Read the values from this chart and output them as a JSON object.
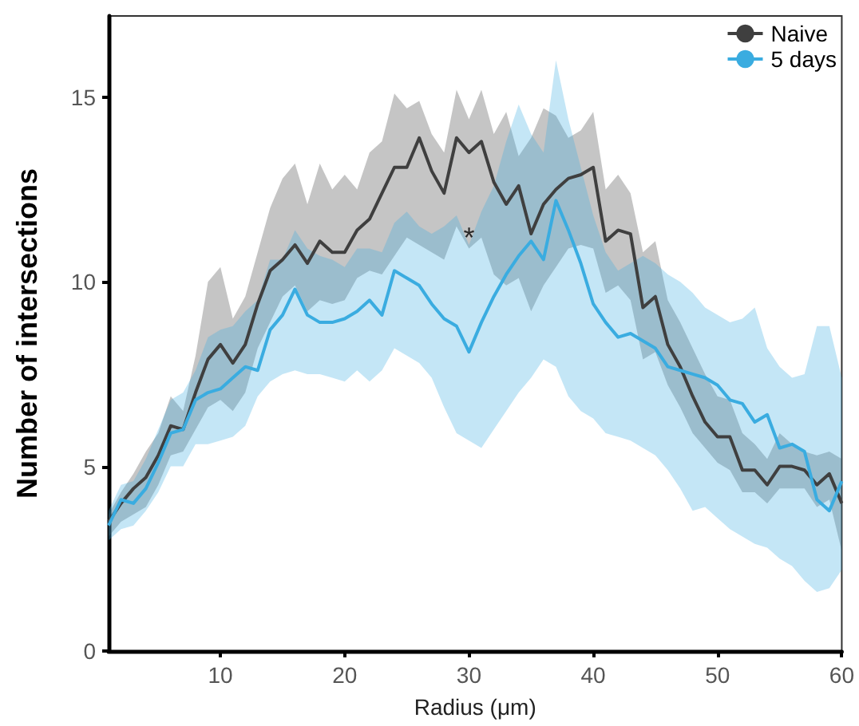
{
  "chart_data": {
    "type": "line",
    "xlabel": "Radius (μm)",
    "ylabel": "Number of intersections",
    "x": [
      1,
      2,
      3,
      4,
      5,
      6,
      7,
      8,
      9,
      10,
      11,
      12,
      13,
      14,
      15,
      16,
      17,
      18,
      19,
      20,
      21,
      22,
      23,
      24,
      25,
      26,
      27,
      28,
      29,
      30,
      31,
      32,
      33,
      34,
      35,
      36,
      37,
      38,
      39,
      40,
      41,
      42,
      43,
      44,
      45,
      46,
      47,
      48,
      49,
      50,
      51,
      52,
      53,
      54,
      55,
      56,
      57,
      58,
      59,
      60
    ],
    "series": [
      {
        "name": "Naive",
        "color": "#3f3f3f",
        "values": [
          3.5,
          4.0,
          4.4,
          4.7,
          5.3,
          6.1,
          6.0,
          7.0,
          7.9,
          8.3,
          7.8,
          8.3,
          9.4,
          10.3,
          10.6,
          11.0,
          10.5,
          11.1,
          10.8,
          10.8,
          11.4,
          11.7,
          12.4,
          13.1,
          13.1,
          13.9,
          13.0,
          12.4,
          13.9,
          13.5,
          13.8,
          12.7,
          12.1,
          12.6,
          11.3,
          12.1,
          12.5,
          12.8,
          12.9,
          13.1,
          11.1,
          11.4,
          11.3,
          9.3,
          9.6,
          8.3,
          7.7,
          6.9,
          6.2,
          5.8,
          5.8,
          4.9,
          4.9,
          4.5,
          5.0,
          5.0,
          4.9,
          4.5,
          4.8,
          4.0
        ],
        "lower": [
          3.1,
          3.5,
          3.7,
          3.9,
          4.5,
          5.3,
          5.4,
          6.0,
          6.6,
          6.8,
          6.5,
          7.0,
          8.2,
          8.9,
          9.6,
          9.9,
          9.2,
          9.5,
          9.4,
          9.5,
          10.1,
          10.3,
          10.2,
          10.7,
          11.2,
          11.0,
          10.8,
          10.6,
          11.5,
          10.9,
          11.2,
          10.2,
          9.9,
          10.1,
          9.2,
          9.9,
          10.4,
          10.9,
          11.0,
          10.9,
          9.7,
          9.9,
          9.5,
          7.9,
          8.1,
          7.2,
          6.6,
          5.9,
          5.5,
          5.1,
          4.9,
          4.3,
          4.3,
          4.0,
          4.4,
          4.4,
          4.4,
          3.9,
          4.1,
          2.7
        ],
        "upper": [
          3.7,
          4.3,
          4.8,
          5.4,
          5.9,
          6.9,
          6.5,
          8.0,
          10.0,
          10.4,
          9.0,
          9.6,
          10.8,
          12.0,
          12.8,
          13.2,
          12.1,
          13.2,
          12.5,
          12.9,
          12.5,
          13.5,
          13.8,
          15.1,
          14.7,
          14.9,
          14.0,
          13.5,
          15.2,
          14.4,
          15.2,
          14.0,
          14.6,
          13.4,
          13.9,
          14.7,
          14.5,
          13.9,
          14.1,
          14.6,
          12.5,
          12.9,
          12.4,
          10.8,
          11.1,
          9.5,
          8.9,
          8.2,
          7.5,
          6.9,
          6.8,
          5.9,
          5.6,
          5.2,
          5.9,
          5.6,
          5.4,
          5.3,
          5.4,
          5.2
        ]
      },
      {
        "name": "5 days",
        "color": "#3aace0",
        "values": [
          3.4,
          4.1,
          4.0,
          4.4,
          5.1,
          5.9,
          6.0,
          6.8,
          7.0,
          7.1,
          7.4,
          7.7,
          7.6,
          8.7,
          9.1,
          9.8,
          9.1,
          8.9,
          8.9,
          9.0,
          9.2,
          9.5,
          9.1,
          10.3,
          10.1,
          9.9,
          9.4,
          9.0,
          8.8,
          8.1,
          8.9,
          9.6,
          10.2,
          10.7,
          11.1,
          10.6,
          12.2,
          11.4,
          10.5,
          9.4,
          8.9,
          8.5,
          8.6,
          8.4,
          8.2,
          7.7,
          7.6,
          7.5,
          7.4,
          7.2,
          6.8,
          6.7,
          6.2,
          6.4,
          5.5,
          5.6,
          5.4,
          4.1,
          3.8,
          4.6
        ],
        "lower": [
          3.0,
          3.3,
          3.4,
          3.8,
          4.3,
          5.0,
          5.0,
          5.6,
          5.6,
          5.7,
          5.8,
          6.1,
          6.9,
          7.3,
          7.5,
          7.6,
          7.5,
          7.5,
          7.4,
          7.3,
          7.6,
          7.3,
          7.6,
          8.2,
          8.0,
          7.8,
          7.4,
          6.6,
          5.9,
          5.7,
          5.5,
          6.0,
          6.5,
          7.0,
          7.4,
          7.9,
          7.7,
          6.9,
          6.5,
          6.3,
          5.9,
          5.8,
          5.7,
          5.5,
          5.3,
          4.9,
          4.4,
          3.8,
          3.9,
          3.6,
          3.3,
          3.1,
          2.9,
          2.8,
          2.5,
          2.3,
          1.9,
          1.6,
          1.7,
          2.2
        ],
        "upper": [
          3.8,
          4.5,
          4.6,
          5.2,
          6.0,
          6.8,
          7.0,
          7.6,
          8.5,
          8.7,
          8.8,
          9.2,
          9.5,
          10.6,
          10.6,
          11.4,
          10.9,
          10.7,
          10.6,
          10.4,
          10.9,
          10.9,
          10.8,
          11.6,
          11.9,
          11.5,
          11.3,
          11.5,
          11.8,
          11.0,
          11.9,
          12.6,
          13.8,
          14.8,
          14.0,
          13.5,
          16.0,
          14.4,
          13.1,
          11.8,
          10.8,
          10.3,
          10.5,
          10.7,
          10.5,
          10.2,
          10.0,
          9.7,
          9.3,
          9.1,
          8.9,
          9.0,
          9.3,
          8.2,
          7.7,
          7.4,
          7.5,
          8.8,
          8.8,
          7.4
        ]
      }
    ],
    "annotations": [
      {
        "text": "*",
        "x": 30,
        "y": 11.2
      }
    ],
    "xlim": [
      1,
      60
    ],
    "xticks": [
      10,
      20,
      30,
      40,
      50,
      60
    ],
    "ylim": [
      0,
      17.2
    ],
    "yticks": [
      0,
      5,
      10,
      15
    ],
    "legend": "top right",
    "marker": "none",
    "grid": false
  }
}
